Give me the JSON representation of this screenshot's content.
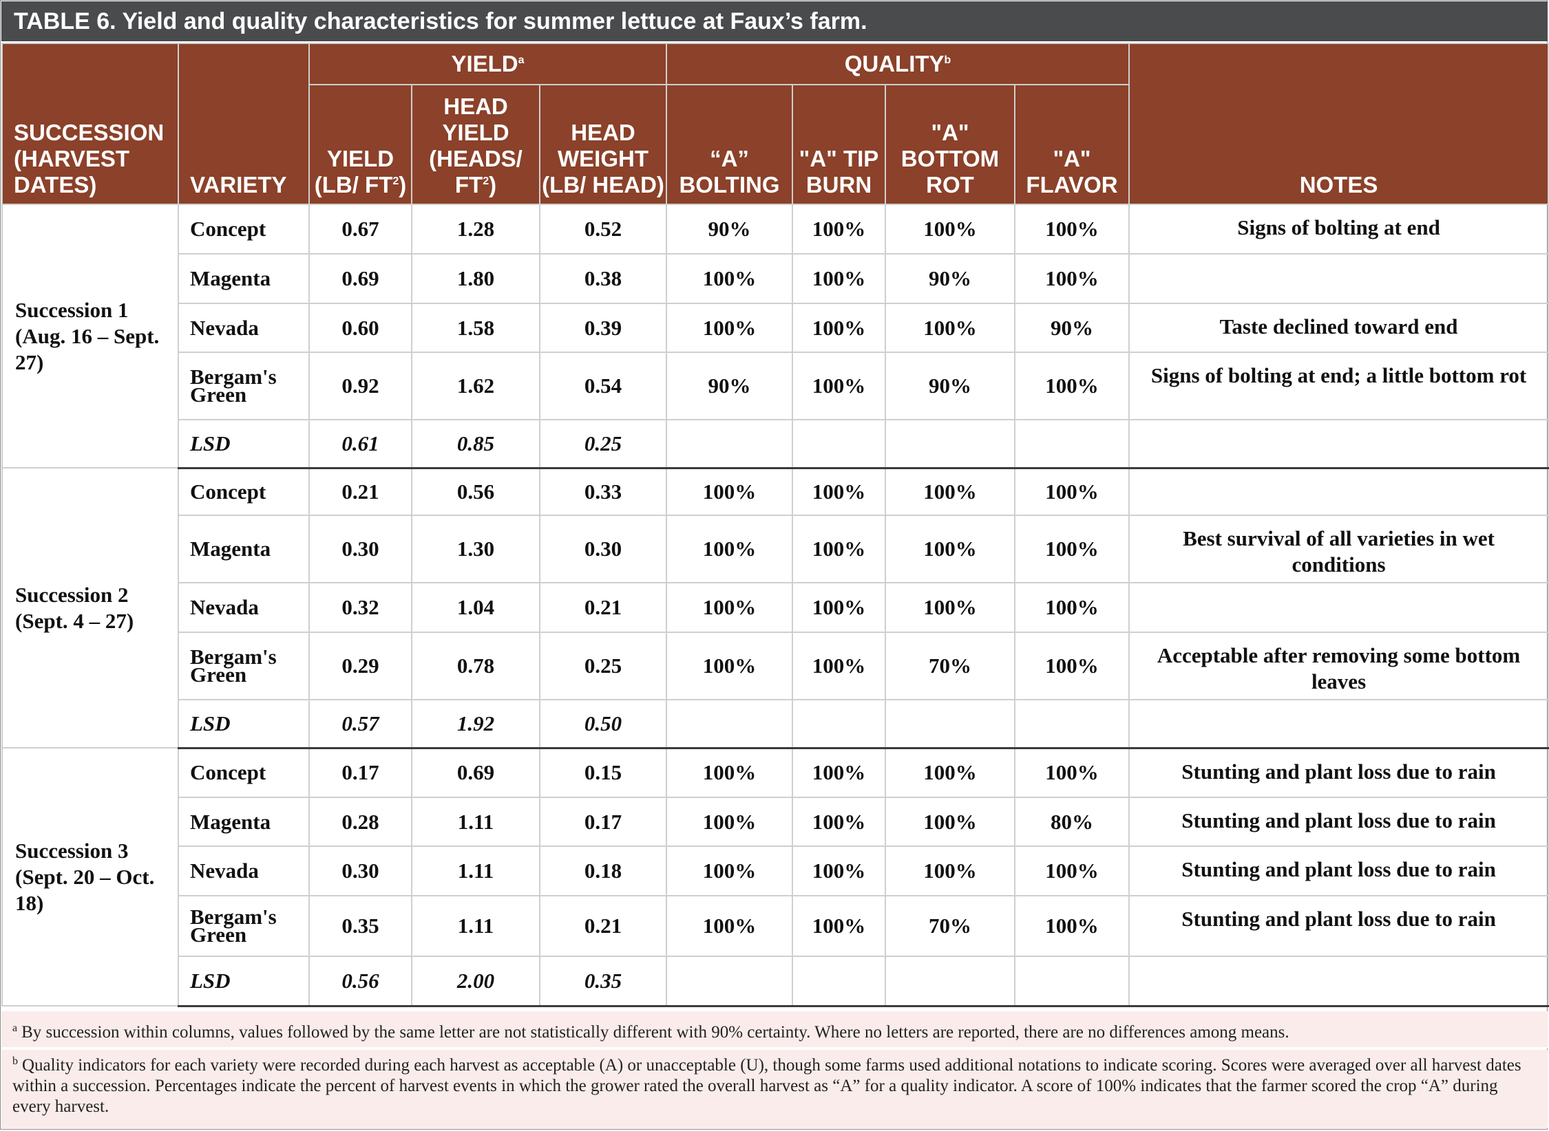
{
  "title": {
    "lead": "TABLE 6.",
    "text": " Yield and quality characteristics for summer lettuce at Faux’s farm."
  },
  "headers": {
    "succession": "SUCCESSION (HARVEST DATES)",
    "variety": "VARIETY",
    "yield_group": "YIELD",
    "yield_group_mark": "a",
    "quality_group": "QUALITY",
    "quality_group_mark": "b",
    "yield": "YIELD (LB/ FT",
    "yield_tail": ")",
    "head_yield": "HEAD YIELD (HEADS/ FT",
    "head_yield_tail": ")",
    "sq_mark": "2",
    "head_weight": "HEAD WEIGHT (LB/ HEAD)",
    "bolting": "“A” BOLTING",
    "tip_burn": "\"A\" TIP BURN",
    "bottom_rot": "\"A\" BOTTOM ROT",
    "flavor": "\"A\" FLAVOR",
    "notes": "NOTES"
  },
  "successions": [
    {
      "label": "Succession 1 (Aug. 16 – Sept. 27)",
      "rows": [
        {
          "variety": "Concept",
          "yield": "0.67",
          "head_yield": "1.28",
          "head_weight": "0.52",
          "bolting": "90%",
          "tip_burn": "100%",
          "bottom_rot": "100%",
          "flavor": "100%",
          "notes": "Signs of bolting at end"
        },
        {
          "variety": "Magenta",
          "yield": "0.69",
          "head_yield": "1.80",
          "head_weight": "0.38",
          "bolting": "100%",
          "tip_burn": "100%",
          "bottom_rot": "90%",
          "flavor": "100%",
          "notes": ""
        },
        {
          "variety": "Nevada",
          "yield": "0.60",
          "head_yield": "1.58",
          "head_weight": "0.39",
          "bolting": "100%",
          "tip_burn": "100%",
          "bottom_rot": "100%",
          "flavor": "90%",
          "notes": "Taste declined toward end"
        },
        {
          "variety": "Bergam's Green",
          "yield": "0.92",
          "head_yield": "1.62",
          "head_weight": "0.54",
          "bolting": "90%",
          "tip_burn": "100%",
          "bottom_rot": "90%",
          "flavor": "100%",
          "notes": "Signs of bolting at end; a little bottom rot"
        },
        {
          "variety": "LSD",
          "yield": "0.61",
          "head_yield": "0.85",
          "head_weight": "0.25",
          "bolting": "",
          "tip_burn": "",
          "bottom_rot": "",
          "flavor": "",
          "notes": ""
        }
      ]
    },
    {
      "label": "Succession 2 (Sept. 4 – 27)",
      "rows": [
        {
          "variety": "Concept",
          "yield": "0.21",
          "head_yield": "0.56",
          "head_weight": "0.33",
          "bolting": "100%",
          "tip_burn": "100%",
          "bottom_rot": "100%",
          "flavor": "100%",
          "notes": ""
        },
        {
          "variety": "Magenta",
          "yield": "0.30",
          "head_yield": "1.30",
          "head_weight": "0.30",
          "bolting": "100%",
          "tip_burn": "100%",
          "bottom_rot": "100%",
          "flavor": "100%",
          "notes": "Best survival of all varieties in wet conditions"
        },
        {
          "variety": "Nevada",
          "yield": "0.32",
          "head_yield": "1.04",
          "head_weight": "0.21",
          "bolting": "100%",
          "tip_burn": "100%",
          "bottom_rot": "100%",
          "flavor": "100%",
          "notes": ""
        },
        {
          "variety": "Bergam's Green",
          "yield": "0.29",
          "head_yield": "0.78",
          "head_weight": "0.25",
          "bolting": "100%",
          "tip_burn": "100%",
          "bottom_rot": "70%",
          "flavor": "100%",
          "notes": "Acceptable after removing some bottom leaves"
        },
        {
          "variety": "LSD",
          "yield": "0.57",
          "head_yield": "1.92",
          "head_weight": "0.50",
          "bolting": "",
          "tip_burn": "",
          "bottom_rot": "",
          "flavor": "",
          "notes": ""
        }
      ]
    },
    {
      "label": "Succession 3 (Sept. 20 – Oct. 18)",
      "rows": [
        {
          "variety": "Concept",
          "yield": "0.17",
          "head_yield": "0.69",
          "head_weight": "0.15",
          "bolting": "100%",
          "tip_burn": "100%",
          "bottom_rot": "100%",
          "flavor": "100%",
          "notes": "Stunting and plant loss due to rain"
        },
        {
          "variety": "Magenta",
          "yield": "0.28",
          "head_yield": "1.11",
          "head_weight": "0.17",
          "bolting": "100%",
          "tip_burn": "100%",
          "bottom_rot": "100%",
          "flavor": "80%",
          "notes": "Stunting and plant loss due to rain"
        },
        {
          "variety": "Nevada",
          "yield": "0.30",
          "head_yield": "1.11",
          "head_weight": "0.18",
          "bolting": "100%",
          "tip_burn": "100%",
          "bottom_rot": "100%",
          "flavor": "100%",
          "notes": "Stunting and plant loss due to rain"
        },
        {
          "variety": "Bergam's Green",
          "yield": "0.35",
          "head_yield": "1.11",
          "head_weight": "0.21",
          "bolting": "100%",
          "tip_burn": "100%",
          "bottom_rot": "70%",
          "flavor": "100%",
          "notes": "Stunting and plant loss due to rain"
        },
        {
          "variety": "LSD",
          "yield": "0.56",
          "head_yield": "2.00",
          "head_weight": "0.35",
          "bolting": "",
          "tip_burn": "",
          "bottom_rot": "",
          "flavor": "",
          "notes": ""
        }
      ]
    }
  ],
  "footnotes": {
    "a_mark": "a",
    "a_text": "By succession within columns, values followed by the same letter are not statistically different with 90% certainty. Where no letters are reported, there are no differences among means.",
    "b_mark": "b",
    "b_text": "Quality indicators for each variety were recorded during each harvest as acceptable (A) or unacceptable (U), though some farms used additional notations to indicate scoring.  Scores were averaged over all harvest dates within a succession. Percentages indicate the percent of harvest events in which the grower rated the overall harvest as “A” for a quality indicator. A score of 100% indicates that the farmer scored the crop “A” during every harvest."
  }
}
